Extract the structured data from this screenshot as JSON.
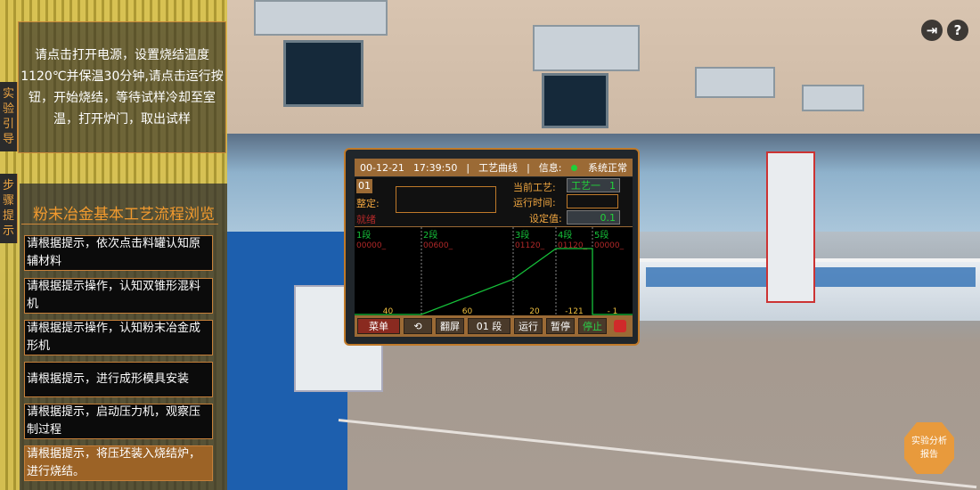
{
  "guide": {
    "tab_label": "实验引导",
    "text": "请点击打开电源，设置烧结温度1120℃并保温30分钟,请点击运行按钮，开始烧结，等待试样冷却至室温，打开炉门，取出试样"
  },
  "steps": {
    "tab_label": "步骤提示",
    "title": "粉末冶金基本工艺流程浏览",
    "items": [
      {
        "label": "请根据提示，依次点击料罐认知原辅材料",
        "active": false
      },
      {
        "label": "请根据提示操作，认知双锥形混料机",
        "active": false
      },
      {
        "label": "请根据提示操作，认知粉末冶金成形机",
        "active": false
      },
      {
        "label": "请根据提示，进行成形模具安装",
        "active": false
      },
      {
        "label": "请根据提示，启动压力机，观察压制过程",
        "active": false
      },
      {
        "label": "请根据提示，将压坯装入烧结炉，进行烧结。",
        "active": true
      }
    ]
  },
  "controller": {
    "date": "00-12-21",
    "time": "17:39:50",
    "mode": "工艺曲线",
    "info_label": "信息:",
    "status": "系统正常",
    "status_color": "#1fd03a",
    "program_no": "01",
    "setting_label": "整定:",
    "state": "就绪",
    "current_process_label": "当前工艺:",
    "current_process_value": "工艺一",
    "current_process_no": "1",
    "run_time_label": "运行时间:",
    "run_time_value": "",
    "setpoint_label": "设定值:",
    "setpoint_value": "0.1",
    "buttons": {
      "menu": "菜单",
      "refresh_icon": "refresh-icon",
      "flip": "翻屏",
      "segment": "01  段",
      "run": "运行",
      "pause": "暂停",
      "stop": "停止",
      "lock_icon": "lock-icon"
    }
  },
  "chart_data": {
    "type": "line",
    "segments": [
      {
        "name": "1段",
        "setpoint_text": "00000_",
        "setpoint": 0,
        "time": "40"
      },
      {
        "name": "2段",
        "setpoint_text": "00600_",
        "setpoint": 600,
        "time": "60"
      },
      {
        "name": "3段",
        "setpoint_text": "01120_",
        "setpoint": 1120,
        "time": "20"
      },
      {
        "name": "4段",
        "setpoint_text": "01120_",
        "setpoint": 1120,
        "time": "-121"
      },
      {
        "name": "5段",
        "setpoint_text": "00000_",
        "setpoint": 0,
        "time": "- 1"
      }
    ],
    "line_color": "#16c23a"
  },
  "top_right": {
    "exit_icon": "exit-icon",
    "help_icon": "help-icon"
  },
  "report_button": {
    "label_line1": "实验分析",
    "label_line2": "报告"
  }
}
